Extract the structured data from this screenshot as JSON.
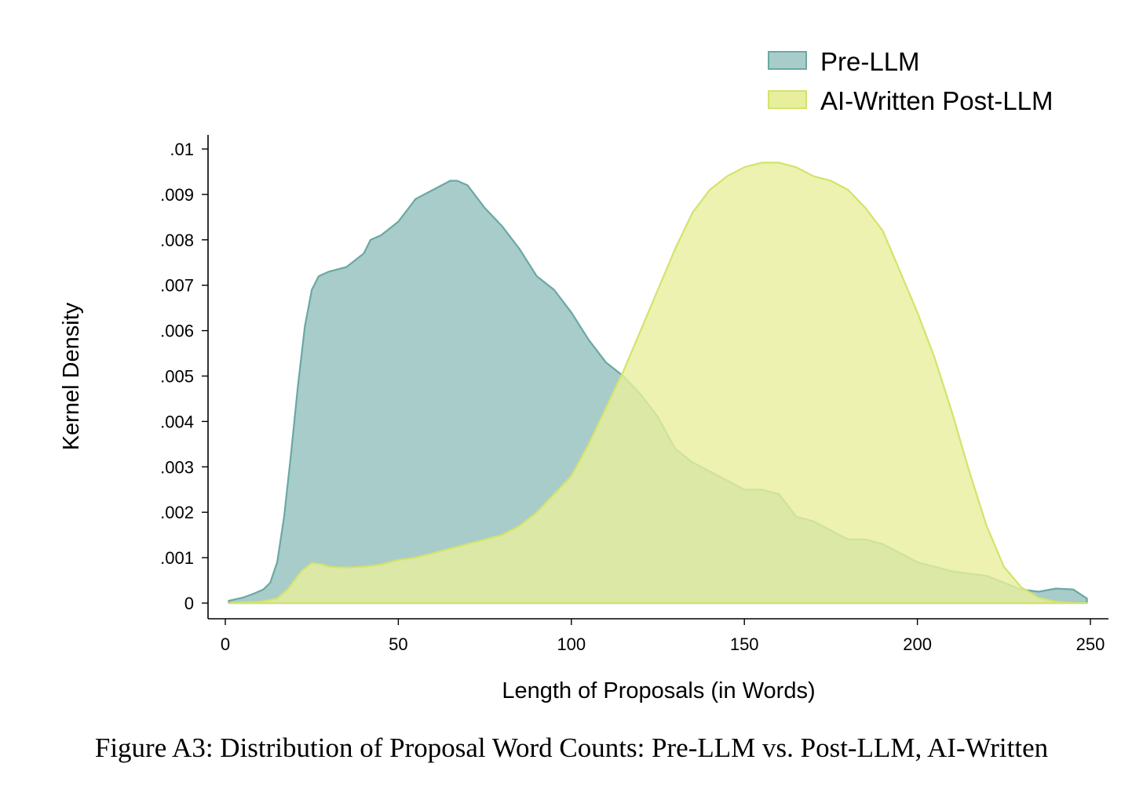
{
  "caption": "Figure A3: Distribution of Proposal Word Counts: Pre-LLM vs. Post-LLM, AI-Written",
  "chart_data": {
    "type": "area",
    "xlabel": "Length of Proposals (in Words)",
    "ylabel": "Kernel Density",
    "xlim": [
      0,
      250
    ],
    "ylim": [
      0,
      0.01
    ],
    "xticks": [
      0,
      50,
      100,
      150,
      200,
      250
    ],
    "xtick_labels": [
      "0",
      "50",
      "100",
      "150",
      "200",
      "250"
    ],
    "yticks": [
      0,
      0.001,
      0.002,
      0.003,
      0.004,
      0.005,
      0.006,
      0.007,
      0.008,
      0.009,
      0.01
    ],
    "ytick_labels": [
      "0",
      ".001",
      ".002",
      ".003",
      ".004",
      ".005",
      ".006",
      ".007",
      ".008",
      ".009",
      ".01"
    ],
    "grid": false,
    "legend_position": "top-right",
    "series": [
      {
        "name": "Pre-LLM",
        "fill": "#a8ccca",
        "stroke": "#6aa8a4",
        "x": [
          1,
          5,
          8,
          11,
          13,
          15,
          17,
          19,
          21,
          23,
          25,
          27,
          30,
          35,
          40,
          42,
          45,
          50,
          55,
          60,
          65,
          67,
          70,
          75,
          80,
          85,
          90,
          95,
          100,
          105,
          110,
          115,
          120,
          125,
          130,
          135,
          140,
          145,
          150,
          155,
          160,
          165,
          170,
          175,
          180,
          185,
          190,
          195,
          200,
          205,
          210,
          215,
          220,
          225,
          230,
          235,
          240,
          245,
          249
        ],
        "y": [
          5e-05,
          0.00012,
          0.0002,
          0.0003,
          0.00045,
          0.0009,
          0.0019,
          0.0033,
          0.0048,
          0.0061,
          0.0069,
          0.0072,
          0.0073,
          0.0074,
          0.0077,
          0.008,
          0.0081,
          0.0084,
          0.0089,
          0.0091,
          0.0093,
          0.0093,
          0.0092,
          0.0087,
          0.0083,
          0.0078,
          0.0072,
          0.0069,
          0.0064,
          0.0058,
          0.0053,
          0.005,
          0.0046,
          0.0041,
          0.0034,
          0.0031,
          0.0029,
          0.0027,
          0.0025,
          0.0025,
          0.0024,
          0.0019,
          0.0018,
          0.0016,
          0.0014,
          0.0014,
          0.0013,
          0.0011,
          0.0009,
          0.0008,
          0.0007,
          0.00065,
          0.0006,
          0.00045,
          0.0003,
          0.00025,
          0.00032,
          0.0003,
          0.0001
        ]
      },
      {
        "name": "AI-Written Post-LLM",
        "fill": "#e8ef9c",
        "stroke": "#d4e36a",
        "x": [
          1,
          10,
          15,
          18,
          20,
          22,
          25,
          28,
          30,
          35,
          40,
          45,
          50,
          55,
          60,
          65,
          70,
          75,
          80,
          85,
          90,
          95,
          100,
          105,
          110,
          115,
          120,
          125,
          130,
          135,
          140,
          145,
          150,
          155,
          157,
          160,
          165,
          170,
          175,
          180,
          185,
          190,
          195,
          200,
          205,
          210,
          215,
          220,
          225,
          230,
          235,
          240,
          245,
          249
        ],
        "y": [
          0,
          3e-05,
          0.0001,
          0.0003,
          0.0005,
          0.0007,
          0.00088,
          0.00085,
          0.0008,
          0.00078,
          0.0008,
          0.00085,
          0.00095,
          0.001,
          0.0011,
          0.0012,
          0.0013,
          0.0014,
          0.0015,
          0.0017,
          0.002,
          0.0024,
          0.0028,
          0.0035,
          0.0043,
          0.0051,
          0.006,
          0.0069,
          0.0078,
          0.0086,
          0.0091,
          0.0094,
          0.0096,
          0.0097,
          0.0097,
          0.0097,
          0.0096,
          0.0094,
          0.0093,
          0.0091,
          0.0087,
          0.0082,
          0.0073,
          0.0064,
          0.0054,
          0.0042,
          0.0029,
          0.0017,
          0.0008,
          0.00035,
          0.00012,
          3e-05,
          0.0,
          0.0
        ]
      }
    ]
  }
}
